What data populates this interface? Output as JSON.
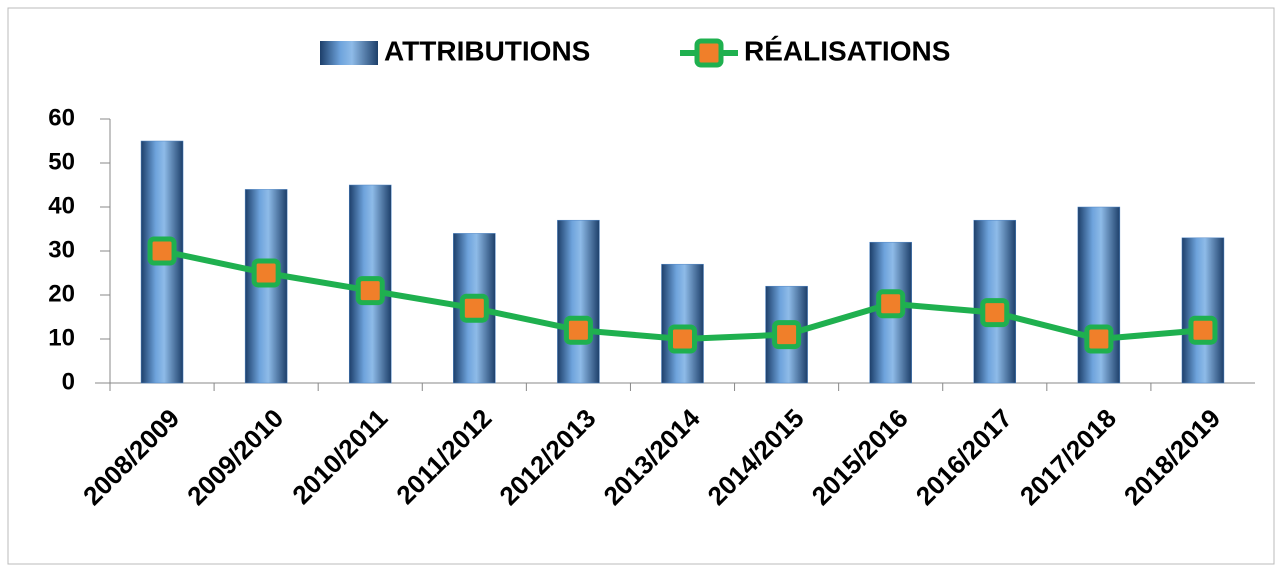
{
  "chart_data": {
    "type": "bar",
    "categories": [
      "2008/2009",
      "2009/2010",
      "2010/2011",
      "2011/2012",
      "2012/2013",
      "2013/2014",
      "2014/2015",
      "2015/2016",
      "2016/2017",
      "2017/2018",
      "2018/2019"
    ],
    "series": [
      {
        "name": "ATTRIBUTIONS",
        "type": "bar",
        "color": "#4f86c6",
        "values": [
          55,
          44,
          45,
          34,
          37,
          27,
          22,
          32,
          37,
          40,
          33
        ]
      },
      {
        "name": "RÉALISATIONS",
        "type": "line",
        "color": "#1fb04f",
        "marker_color": "#f07f2a",
        "values": [
          30,
          25,
          21,
          17,
          12,
          10,
          11,
          18,
          16,
          10,
          12
        ]
      }
    ],
    "ylim": [
      0,
      60
    ],
    "yticks": [
      0,
      10,
      20,
      30,
      40,
      50,
      60
    ],
    "grid": false,
    "legend": "top"
  }
}
